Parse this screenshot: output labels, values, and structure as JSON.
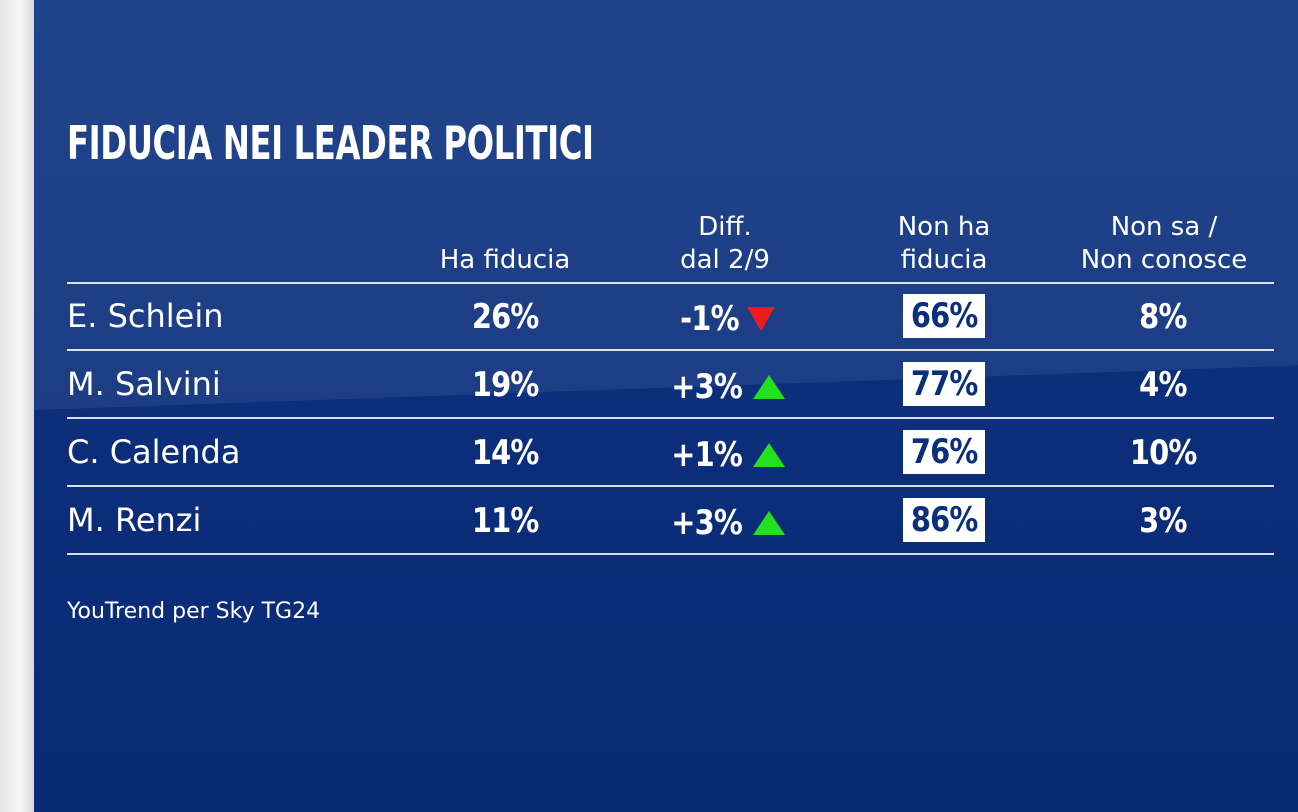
{
  "colors": {
    "background": "#0c2f7c",
    "text": "#ffffff",
    "box_fill": "#ffffff",
    "box_text": "#0c2f7c",
    "up_arrow": "#22e11f",
    "down_arrow": "#ee1b1b"
  },
  "chart_data": {
    "type": "table",
    "title": "FIDUCIA NEI LEADER POLITICI",
    "columns": [
      {
        "key": "name",
        "label": ""
      },
      {
        "key": "ha_fiducia",
        "label_lines": [
          "",
          "Ha fiducia"
        ]
      },
      {
        "key": "diff",
        "label_lines": [
          "Diff.",
          "dal 2/9"
        ]
      },
      {
        "key": "non_ha_fiducia",
        "label_lines": [
          "Non ha",
          "fiducia"
        ]
      },
      {
        "key": "non_sa",
        "label_lines": [
          "Non sa /",
          "Non conosce"
        ]
      }
    ],
    "rows": [
      {
        "name": "E. Schlein",
        "ha_fiducia": "26%",
        "diff": "-1%",
        "trend": "down",
        "non_ha_fiducia": "66%",
        "non_sa": "8%"
      },
      {
        "name": "M. Salvini",
        "ha_fiducia": "19%",
        "diff": "+3%",
        "trend": "up",
        "non_ha_fiducia": "77%",
        "non_sa": "4%"
      },
      {
        "name": "C. Calenda",
        "ha_fiducia": "14%",
        "diff": "+1%",
        "trend": "up",
        "non_ha_fiducia": "76%",
        "non_sa": "10%"
      },
      {
        "name": "M. Renzi",
        "ha_fiducia": "11%",
        "diff": "+3%",
        "trend": "up",
        "non_ha_fiducia": "86%",
        "non_sa": "3%"
      }
    ],
    "values": {
      "ha_fiducia": [
        26,
        19,
        14,
        11
      ],
      "diff": [
        -1,
        3,
        1,
        3
      ],
      "non_ha_fiducia": [
        66,
        77,
        76,
        86
      ],
      "non_sa": [
        8,
        4,
        10,
        3
      ]
    },
    "source": "YouTrend per Sky TG24"
  }
}
